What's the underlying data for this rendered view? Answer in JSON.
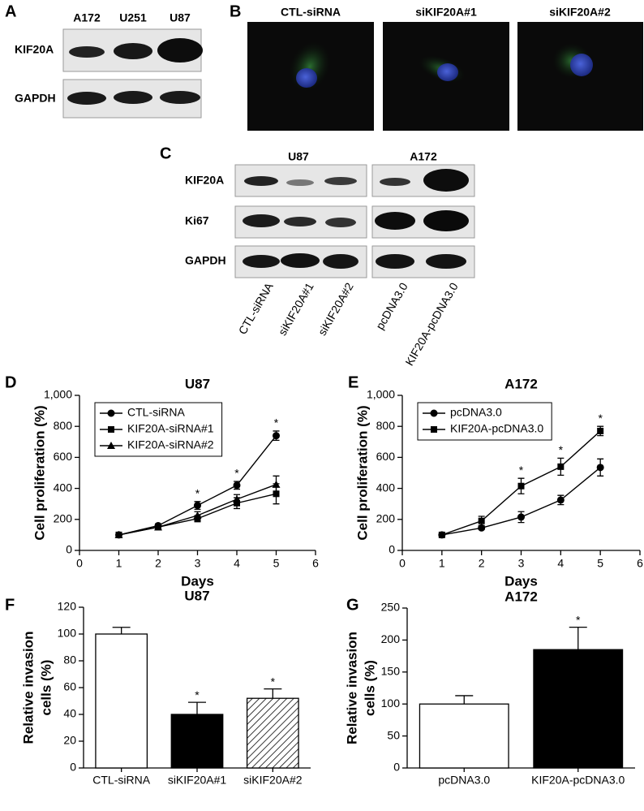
{
  "figure_a": {
    "panel_label": "A",
    "lanes": [
      "A172",
      "U251",
      "U87"
    ],
    "rows": [
      "KIF20A",
      "GAPDH"
    ]
  },
  "figure_b": {
    "panel_label": "B",
    "images": [
      "CTL-siRNA",
      "siKIF20A#1",
      "siKIF20A#2"
    ]
  },
  "figure_c": {
    "panel_label": "C",
    "rows": [
      "KIF20A",
      "Ki67",
      "GAPDH"
    ],
    "groups": [
      {
        "name": "U87",
        "lanes": [
          "CTL-siRNA",
          "siKIF20A#1",
          "siKIF20A#2"
        ]
      },
      {
        "name": "A172",
        "lanes": [
          "pcDNA3.0",
          "KIF20A-pcDNA3.0"
        ]
      }
    ]
  },
  "chart_data": [
    {
      "type": "line",
      "panel_label": "D",
      "title": "U87",
      "xlabel": "Days",
      "ylabel": "Cell proliferation (%)",
      "x": [
        1,
        2,
        3,
        4,
        5
      ],
      "xlim": [
        0,
        6
      ],
      "xticks": [
        0,
        1,
        2,
        3,
        4,
        5,
        6
      ],
      "ylim": [
        0,
        1000
      ],
      "yticks": [
        0,
        200,
        400,
        600,
        800,
        {
          "value": 1000,
          "label": "1,000"
        }
      ],
      "legend": "upper left",
      "series": [
        {
          "name": "CTL-siRNA",
          "color": "#000000",
          "marker": "circle",
          "values": [
            100,
            160,
            290,
            420,
            740
          ],
          "errors": [
            10,
            10,
            25,
            25,
            30
          ],
          "annotations": [
            null,
            null,
            "*",
            "*",
            "*"
          ]
        },
        {
          "name": "KIF20A-siRNA#1",
          "color": "#000000",
          "marker": "square",
          "values": [
            100,
            150,
            205,
            305,
            365
          ],
          "errors": [
            5,
            10,
            20,
            35,
            65
          ],
          "annotations": [
            null,
            null,
            null,
            null,
            null
          ]
        },
        {
          "name": "KIF20A-siRNA#2",
          "color": "#000000",
          "marker": "triangle",
          "values": [
            100,
            150,
            225,
            330,
            425
          ],
          "errors": [
            5,
            10,
            25,
            30,
            55
          ],
          "annotations": [
            null,
            null,
            null,
            null,
            null
          ]
        }
      ]
    },
    {
      "type": "line",
      "panel_label": "E",
      "title": "A172",
      "xlabel": "Days",
      "ylabel": "Cell proliferation (%)",
      "x": [
        1,
        2,
        3,
        4,
        5
      ],
      "xlim": [
        0,
        6
      ],
      "xticks": [
        0,
        1,
        2,
        3,
        4,
        5,
        6
      ],
      "ylim": [
        0,
        1000
      ],
      "yticks": [
        0,
        200,
        400,
        600,
        800,
        {
          "value": 1000,
          "label": "1,000"
        }
      ],
      "legend": "upper left",
      "series": [
        {
          "name": "pcDNA3.0",
          "color": "#000000",
          "marker": "circle",
          "values": [
            100,
            145,
            215,
            325,
            535
          ],
          "errors": [
            5,
            10,
            35,
            30,
            55
          ],
          "annotations": [
            null,
            null,
            null,
            null,
            null
          ]
        },
        {
          "name": "KIF20A-pcDNA3.0",
          "color": "#000000",
          "marker": "square",
          "values": [
            100,
            190,
            415,
            540,
            770
          ],
          "errors": [
            5,
            30,
            50,
            55,
            30
          ],
          "annotations": [
            null,
            null,
            "*",
            "*",
            "*"
          ]
        }
      ]
    },
    {
      "type": "bar",
      "panel_label": "F",
      "title": "U87",
      "ylabel": [
        "Relative invasion",
        "cells (%)"
      ],
      "categories": [
        "CTL-siRNA",
        "siKIF20A#1",
        "siKIF20A#2"
      ],
      "values": [
        100,
        40,
        52
      ],
      "errors": [
        5,
        9,
        7
      ],
      "annotations": [
        null,
        "*",
        "*"
      ],
      "colors": [
        "#ffffff",
        "#000000",
        "#ffffff"
      ],
      "hatch": [
        false,
        false,
        true
      ],
      "ylim": [
        0,
        120
      ],
      "yticks": [
        0,
        20,
        40,
        60,
        80,
        100,
        120
      ]
    },
    {
      "type": "bar",
      "panel_label": "G",
      "title": "A172",
      "ylabel": [
        "Relative invasion",
        "cells (%)"
      ],
      "categories": [
        "pcDNA3.0",
        "KIF20A-pcDNA3.0"
      ],
      "values": [
        100,
        185
      ],
      "errors": [
        13,
        35
      ],
      "annotations": [
        null,
        "*"
      ],
      "colors": [
        "#ffffff",
        "#000000"
      ],
      "hatch": [
        false,
        false
      ],
      "ylim": [
        0,
        250
      ],
      "yticks": [
        0,
        50,
        100,
        150,
        200,
        250
      ]
    }
  ]
}
